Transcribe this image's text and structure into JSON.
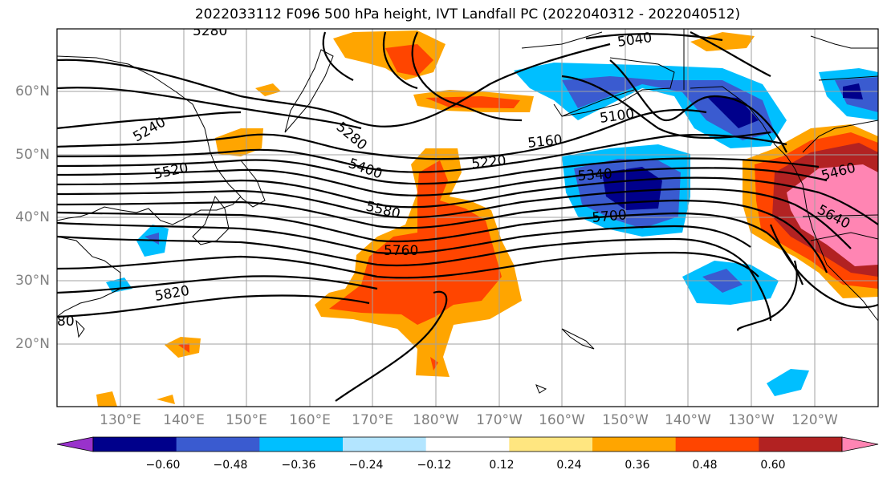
{
  "title": "2022033112 F096 500 hPa height, IVT Landfall PC (2022040312 - 2022040512)",
  "lat_labels": [
    "60°N",
    "50°N",
    "40°N",
    "30°N",
    "20°N"
  ],
  "lon_labels": [
    "130°E",
    "140°E",
    "150°E",
    "160°E",
    "170°E",
    "180°W",
    "170°W",
    "160°W",
    "150°W",
    "140°W",
    "130°W",
    "120°W"
  ],
  "contour_labels": [
    "5280",
    "5040",
    "5240",
    "5280",
    "5100",
    "5160",
    "5220",
    "5520",
    "5400",
    "5340",
    "5460",
    "5580",
    "5700",
    "5640",
    "5760",
    "5820",
    "80"
  ],
  "colorbar": {
    "ticks": [
      "−0.60",
      "−0.48",
      "−0.36",
      "−0.24",
      "−0.12",
      "0.12",
      "0.24",
      "0.36",
      "0.48",
      "0.60"
    ],
    "colors": [
      "#9932cc",
      "#00008b",
      "#3a5bd0",
      "#00bfff",
      "#b3e5ff",
      "#ffffff",
      "#ffe680",
      "#ffa500",
      "#ff4500",
      "#b22222",
      "#ff85b3"
    ]
  }
}
